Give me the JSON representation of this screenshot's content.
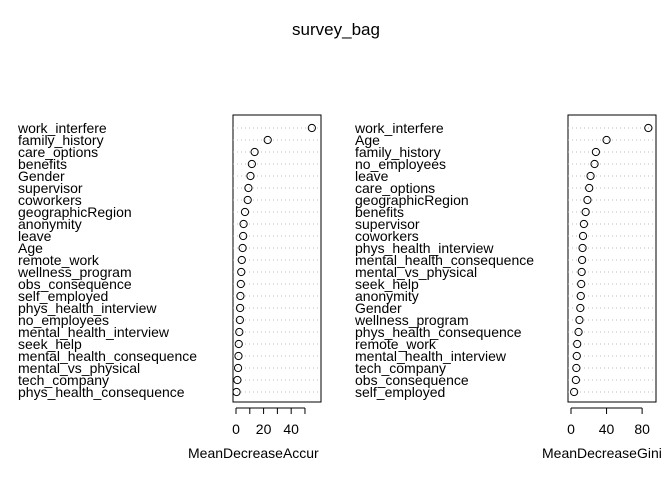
{
  "page": {
    "title": "survey_bag"
  },
  "chart_data": [
    {
      "type": "dotchart",
      "xlabel": "MeanDecreaseAccur",
      "xlim": [
        0,
        58
      ],
      "xticks": [
        0,
        10,
        20,
        30,
        40,
        50
      ],
      "xtick_labels": [
        "0",
        "",
        "20",
        "",
        "40",
        ""
      ],
      "points": [
        {
          "label": "work_interfere",
          "value": 55
        },
        {
          "label": "family_history",
          "value": 23
        },
        {
          "label": "care_options",
          "value": 13.5
        },
        {
          "label": "benefits",
          "value": 11.5
        },
        {
          "label": "Gender",
          "value": 10.5
        },
        {
          "label": "supervisor",
          "value": 9
        },
        {
          "label": "coworkers",
          "value": 8.5
        },
        {
          "label": "geographicRegion",
          "value": 6.5
        },
        {
          "label": "anonymity",
          "value": 5.5
        },
        {
          "label": "leave",
          "value": 5.2
        },
        {
          "label": "Age",
          "value": 4.8
        },
        {
          "label": "remote_work",
          "value": 4.2
        },
        {
          "label": "wellness_program",
          "value": 3.8
        },
        {
          "label": "obs_consequence",
          "value": 3.5
        },
        {
          "label": "self_employed",
          "value": 3.2
        },
        {
          "label": "phys_health_interview",
          "value": 3.0
        },
        {
          "label": "no_employees",
          "value": 2.8
        },
        {
          "label": "mental_health_interview",
          "value": 2.4
        },
        {
          "label": "seek_help",
          "value": 2.0
        },
        {
          "label": "mental_health_consequence",
          "value": 1.8
        },
        {
          "label": "mental_vs_physical",
          "value": 1.5
        },
        {
          "label": "tech_company",
          "value": 1.0
        },
        {
          "label": "phys_health_consequence",
          "value": 0.4
        }
      ]
    },
    {
      "type": "dotchart",
      "xlabel": "MeanDecreaseGini",
      "xlim": [
        0,
        90
      ],
      "xticks": [
        0,
        40,
        80
      ],
      "xtick_labels": [
        "0",
        "40",
        "80"
      ],
      "points": [
        {
          "label": "work_interfere",
          "value": 87
        },
        {
          "label": "Age",
          "value": 40
        },
        {
          "label": "family_history",
          "value": 28
        },
        {
          "label": "no_employees",
          "value": 26.5
        },
        {
          "label": "leave",
          "value": 22
        },
        {
          "label": "care_options",
          "value": 20.5
        },
        {
          "label": "geographicRegion",
          "value": 18.5
        },
        {
          "label": "benefits",
          "value": 16.5
        },
        {
          "label": "supervisor",
          "value": 14.5
        },
        {
          "label": "coworkers",
          "value": 13.5
        },
        {
          "label": "phys_health_interview",
          "value": 13
        },
        {
          "label": "mental_health_consequence",
          "value": 12.5
        },
        {
          "label": "mental_vs_physical",
          "value": 12
        },
        {
          "label": "seek_help",
          "value": 11.5
        },
        {
          "label": "anonymity",
          "value": 11
        },
        {
          "label": "Gender",
          "value": 10.5
        },
        {
          "label": "wellness_program",
          "value": 9.5
        },
        {
          "label": "phys_health_consequence",
          "value": 8.5
        },
        {
          "label": "remote_work",
          "value": 7
        },
        {
          "label": "mental_health_interview",
          "value": 6.5
        },
        {
          "label": "tech_company",
          "value": 6
        },
        {
          "label": "obs_consequence",
          "value": 5.5
        },
        {
          "label": "self_employed",
          "value": 3.5
        }
      ]
    }
  ]
}
